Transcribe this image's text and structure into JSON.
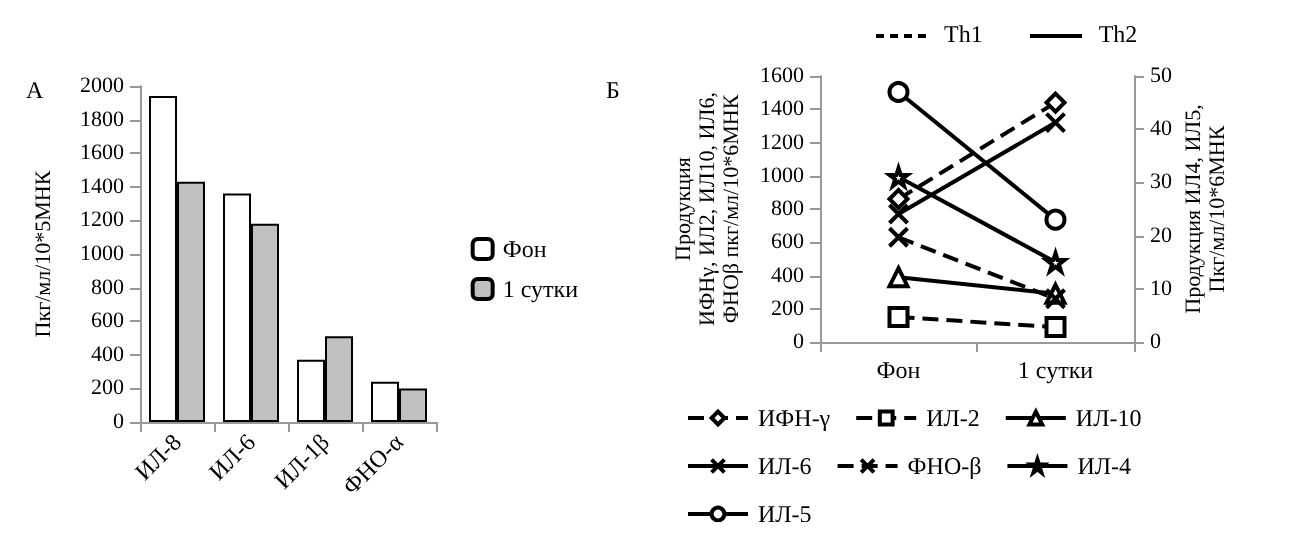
{
  "chart_data": [
    {
      "type": "bar",
      "title": "А",
      "ylabel": "Пкг/мл/10*5МНК",
      "categories": [
        "ИЛ-8",
        "ИЛ-6",
        "ИЛ-1β",
        "ФНО-α"
      ],
      "series": [
        {
          "name": "Фон",
          "color": "#ffffff",
          "values": [
            1940,
            1360,
            370,
            240
          ]
        },
        {
          "name": "1 сутки",
          "color": "#c0c0c0",
          "values": [
            1430,
            1180,
            510,
            200
          ]
        }
      ],
      "ylim": [
        0,
        2000
      ],
      "yticks": [
        0,
        200,
        400,
        600,
        800,
        1000,
        1200,
        1400,
        1600,
        1800,
        2000
      ],
      "legend": "right"
    },
    {
      "type": "line",
      "title": "Б",
      "categories": [
        "Фон",
        "1 сутки"
      ],
      "ylabel": "Продукция\nИФНγ, ИЛ2, ИЛ10, ИЛ6,\nФНОβ пкг/мл/10*6МНК",
      "y2label": "Продукция ИЛ4, ИЛ5,\nПкг/мл/10*6МНК",
      "annotations": [
        "Th1",
        "Th2"
      ],
      "series": [
        {
          "name": "ИФН-γ",
          "color": "#000000",
          "line_style": "dashed",
          "marker": "diamond",
          "values": [
            860,
            1440
          ]
        },
        {
          "name": "ИЛ-2",
          "color": "#000000",
          "line_style": "dashed",
          "marker": "square",
          "values": [
            150,
            90
          ]
        },
        {
          "name": "ИЛ-10",
          "color": "#000000",
          "line_style": "solid",
          "marker": "triangle",
          "values": [
            390,
            290
          ]
        },
        {
          "name": "ИЛ-6",
          "color": "#000000",
          "line_style": "solid",
          "marker": "cross",
          "values": [
            770,
            1320
          ]
        },
        {
          "name": "ФНО-β",
          "color": "#000000",
          "line_style": "dashed",
          "marker": "cross",
          "values": [
            630,
            260
          ]
        },
        {
          "name": "ИЛ-4",
          "color": "#000000",
          "line_style": "solid",
          "marker": "star",
          "axis": "y2",
          "values": [
            31,
            15
          ]
        },
        {
          "name": "ИЛ-5",
          "color": "#000000",
          "line_style": "solid",
          "marker": "circle",
          "axis": "y2",
          "values": [
            47,
            23
          ]
        }
      ],
      "ylim": [
        0,
        1600
      ],
      "yticks": [
        0,
        200,
        400,
        600,
        800,
        1000,
        1200,
        1400,
        1600
      ],
      "y2lim": [
        0,
        50
      ],
      "y2ticks": [
        0,
        10,
        20,
        30,
        40,
        50
      ],
      "legend": "bottom"
    }
  ]
}
